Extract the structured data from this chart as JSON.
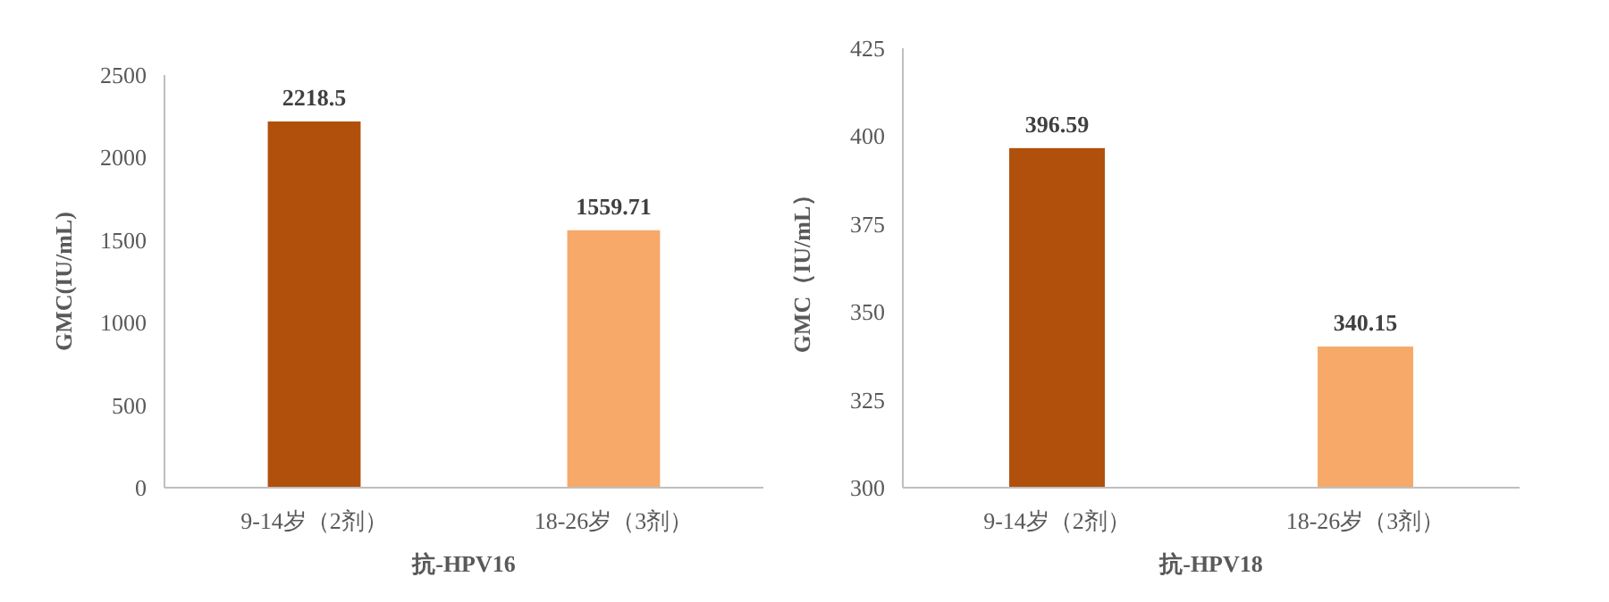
{
  "chart_data": [
    {
      "type": "bar",
      "xlabel": "抗-HPV16",
      "ylabel": "GMC(IU/mL)",
      "categories": [
        "9-14岁（2剂）",
        "18-26岁（3剂）"
      ],
      "values": [
        2218.5,
        1559.71
      ],
      "colors": [
        "#b0500c",
        "#f7a96a"
      ],
      "ylim": [
        0,
        2500
      ],
      "yticks": [
        0,
        500,
        1000,
        1500,
        2000,
        2500
      ],
      "data_labels": true
    },
    {
      "type": "bar",
      "xlabel": "抗-HPV18",
      "ylabel": "GMC（IU/mL）",
      "categories": [
        "9-14岁（2剂）",
        "18-26岁（3剂）"
      ],
      "values": [
        396.59,
        340.15
      ],
      "colors": [
        "#b0500c",
        "#f7a96a"
      ],
      "ylim": [
        300,
        425
      ],
      "yticks": [
        300,
        325,
        350,
        375,
        400,
        425
      ],
      "data_labels": true
    }
  ]
}
